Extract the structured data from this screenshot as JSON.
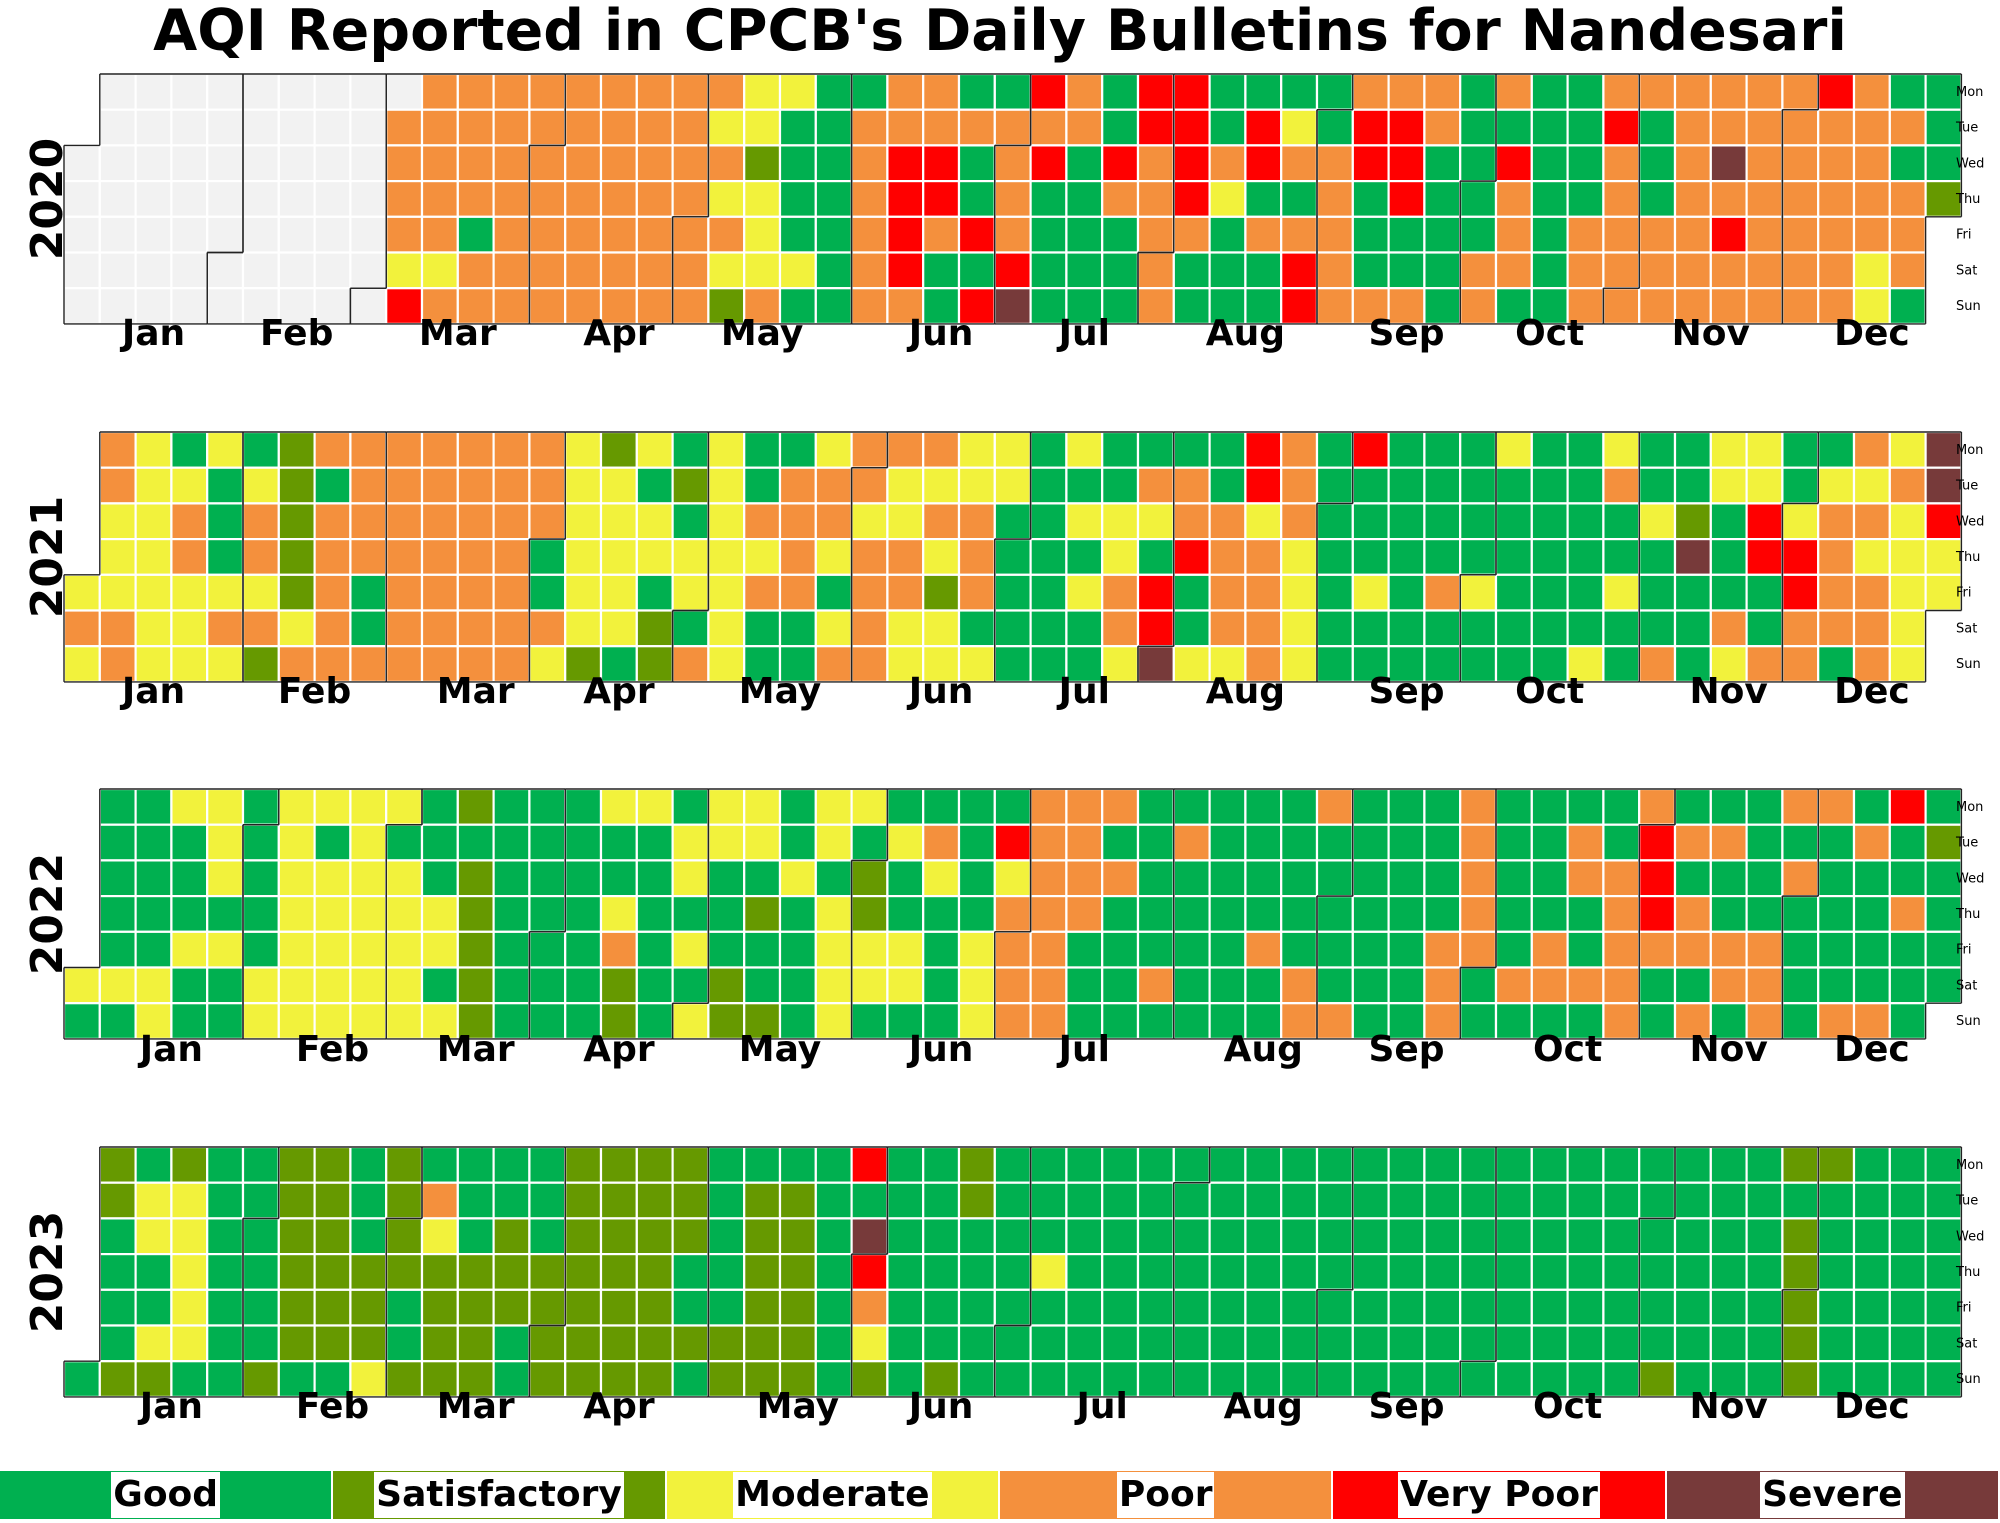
{
  "title": "AQI Reported in CPCB's Daily Bulletins for Nandesari",
  "chart_data": {
    "type": "heatmap",
    "title": "AQI Reported in CPCB's Daily Bulletins for Nandesari",
    "years": [
      "2020",
      "2021",
      "2022",
      "2023"
    ],
    "month_labels": [
      "Jan",
      "Feb",
      "Mar",
      "Apr",
      "May",
      "Jun",
      "Jul",
      "Aug",
      "Sep",
      "Oct",
      "Nov",
      "Dec"
    ],
    "weekday_labels": [
      "Mon",
      "Tue",
      "Wed",
      "Thu",
      "Fri",
      "Sat",
      "Sun"
    ],
    "categories": [
      {
        "key": "G",
        "label": "Good",
        "color": "#00b050"
      },
      {
        "key": "S",
        "label": "Satisfactory",
        "color": "#669900"
      },
      {
        "key": "M",
        "label": "Moderate",
        "color": "#f2f23c"
      },
      {
        "key": "P",
        "label": "Poor",
        "color": "#f4903d"
      },
      {
        "key": "V",
        "label": "Very Poor",
        "color": "#ff0000"
      },
      {
        "key": "X",
        "label": "Severe",
        "color": "#773a3a"
      }
    ],
    "missing_color": "#f2f2f2",
    "encoding": "each year row: string of day categories in calendar order (Jan 1 to Dec 31); N = no data",
    "days": {
      "2020": "NNNNNNNNNNNNNNNNNNNNNNNNNNNNNNNNNNNNNNNNNNNNNNNNNNNNNNNNNNNNNNPPPPMVPPPPPMPPPPPGPPPPPPPPPPPPPPPPPPPPPPPPPPPPPPPPPPPPPPPPPPPPPMPMPMSMMSMMMPMGGGGMGGGGGGGGGPPPPPPPPVVVVPPPVVPGGGPGGVGVGPPPPVXVPVGGGGPPGGGGGGGVPGGGVVPPPPPVVVVPGGGGPMGGGGVVGPGGGMPGPVVGGPPPPPPVVGGGPPVVVGGPPPGGGGGGGGGGPPPGVPPPGGGGGGGGGGGGPPPPVPPPPPPGGGPPPPPPPPPPPPXPVPPPPPPPPPPPPPPPPVPPPPPPPPPPPMMGPGPPPGGGGSSSGGGGGGPPPPPPPPPPGPPPPPPPPPPPPPPPPPPPPGPPPPPPPPPPPPPMPPPMMPMPMMPMPMGGGPGMGGGGPPPPPPPPPPPPPPPPPPPPGSS",
      "2021": "MPMPPMMMPPMMMMMMMGMPPMMMMGGGMPMGMPPMPSSSSSSMPPGPPPPPPPPPGGPPPPPPPPPPPPPPPPPPPPPPPPPPPPPPPPGGPMMMMMMMSSMMMMMGMGMMGSSGSGMMGPMMMMMMMGGPMPGGGPPPPGGMPPMGMPPPMPPPPPMMPPMMPMPMSMMMMPPPGMMMGGGGGGGGGGGGMGMGMGGGGMMPPMGPMGVVXGPPVGGMGGPPPPMVVMPPPPPPPMMMMGGGGGGGVGGGMGGGGGGGGGGGGGPGGGGGGMGGMGGGGGGGGGGGGGGGGGGGMMPGGMGGGGMGGGPGGSXGGGMMGGGPMMMVVGGPGGMVVPPGMPPPPGPMPMPPPMPMMMMMXXVMMPPVMGGGMMGMGPPMMMMGMMMGGGGGGGGGGMMMGSGGMMMMMMMMMMMMGMGMGGGMMMMMMMGGGGGMMMMMMMMMMMMMMGGGGGGGMMGGGGGGGGGGGGGGGGGMMPGMMGPGGGGGGGGGPMMMMMGGGGG",
      "2022": "MGGGGGGMGGGGGGMMMGGGMGGMMMGMGGGGGGGMMMMMMMMMMGMMMMMMMMMMMMMGMMMMMGGGMMGMSGSSSSSGGGGGGGGGGGGGGGGGGGGGMGGMPSSMGGGGGGGMMGMGMMMGGGSSMMGSGGSGGMGGGGMMGMMMMMGSSMMGGMGGMMGGPMGGGGGGGGMMMGVMPPPPPPPPPPPPPPPGGGPGPGGGGGGGGGPGGPGGGGGGGGGGGGGGGGPGGGGGGGPPPGGGGGPGGGGGGGGGGGGGGGGGGPPPPPPPPGGGGGGGPGGGGGPPGGPPGGPGGGPPPPPPVVVPGGGPGPPGPGPGGPPGGGGGPPPPGPGGGGPGGGGGPGPGGGGPVGGPGGGGSGGGGGGGGPPGGGGGGMVGGGGMPPPPGGGMGGGPPGPMGGGGPGGGGGGGGGGGGGGGGGGGGMGPGGGGSGSSSSMSGGGSMGGMGGMGSGGMMMMGGGGGMMGGGGGGGGGGGSGMMMGSGPSVGSGGGGMGPSSSSSSSGGGGGGG",
      "2023": "GSSGGGGSGMMGGMSSMMMMMGGGGGGGGGGGGGGSSSSSSSGSSSSSSGGGGSSSMSSSSGGSGPMSSSSGGGSSSSGGSSSGGGGGSSSSSSSSSSSSSSSSSSSSSSSSSSSSGGSGGGGGGSSGSSSSSSGSSSSSSGGGGGGGVGXVPMSGGGGGGGGGGGGGSSSGGGGGGGGGGGGGGGMGGGGGGGGGGGGGGGGGGGGGGGGGGGGGGGGGGGGGGGGGGGGGGGGGGGGGGGGGGGGGGGGGGGGGGGGGGGGGGGGGGGGGGGGGGGGGGGGGGGGGGGGGGGGGGGGGGGGGGGGGSGGGGGGGGGGGGGGGGGGGGGSGSSSSSSGGGGGGGGGGGGGGGGGGGGGGGGGGGGGGGGGGGGGGGGGGGGGGGGGGGGGGGGGGGGSSGGGGGGGGGGGGGGSSSGGGGSSGGGGGGSSGGGGGGSSSGGGSSGGGGGGSSSSSSSSSSGSGGGGGGSGGSGGGGGSGGGGGGGGGGGGGGGGGGGGGGGGGGGGGGGGG"
    }
  },
  "legend": {
    "items": [
      {
        "label": "Good",
        "color": "#00b050"
      },
      {
        "label": "Satisfactory",
        "color": "#669900"
      },
      {
        "label": "Moderate",
        "color": "#f2f23c"
      },
      {
        "label": "Poor",
        "color": "#f4903d"
      },
      {
        "label": "Very Poor",
        "color": "#ff0000"
      },
      {
        "label": "Severe",
        "color": "#773a3a"
      }
    ]
  }
}
